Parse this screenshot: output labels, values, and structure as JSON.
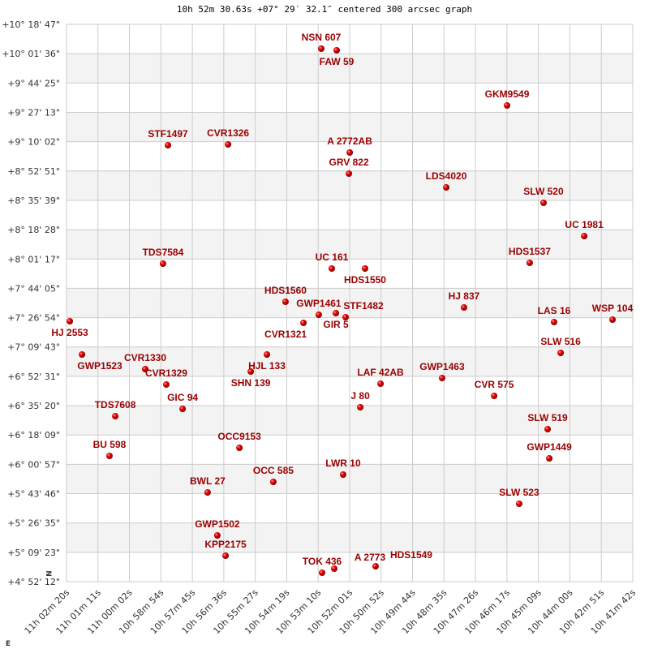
{
  "chart_data": {
    "type": "scatter",
    "title": "10h 52m 30.63s +07° 29′ 32.1″ centered 300 arcsec graph",
    "x_axis": {
      "quantity": "right ascension (hours)",
      "label": "E",
      "range_hours": [
        11.03889,
        10.695
      ],
      "reversed": true,
      "ticks": [
        "11h 02m 20s",
        "11h 01m 11s",
        "11h 00m 02s",
        "10h 58m 54s",
        "10h 57m 45s",
        "10h 56m 36s",
        "10h 55m 27s",
        "10h 54m 19s",
        "10h 53m 10s",
        "10h 52m 01s",
        "10h 50m 52s",
        "10h 49m 44s",
        "10h 48m 35s",
        "10h 47m 26s",
        "10h 46m 17s",
        "10h 45m 09s",
        "10h 44m 00s",
        "10h 42m 51s",
        "10h 41m 42s"
      ]
    },
    "y_axis": {
      "quantity": "declination (degrees)",
      "label": "N",
      "range_deg": [
        4.87,
        10.31306
      ],
      "ticks": [
        "+10° 18' 47\"",
        "+10° 01' 36\"",
        "+9° 44' 25\"",
        "+9° 27' 13\"",
        "+9° 10' 02\"",
        "+8° 52' 51\"",
        "+8° 35' 39\"",
        "+8° 18' 28\"",
        "+8° 01' 17\"",
        "+7° 44' 05\"",
        "+7° 26' 54\"",
        "+7° 09' 43\"",
        "+6° 52' 31\"",
        "+6° 35' 20\"",
        "+6° 18' 09\"",
        "+6° 00' 57\"",
        "+5° 43' 46\"",
        "+5° 26' 35\"",
        "+5° 09' 23\"",
        "+4° 52' 12\""
      ]
    },
    "grid": true,
    "banded_rows": true,
    "colors": {
      "point": "#dd0000",
      "label": "#990000",
      "grid": "#cccccc",
      "band": "#f3f3f3"
    },
    "points": [
      {
        "name": "NSN 607",
        "ra": 10.88418,
        "dec": 10.0754
      },
      {
        "name": "FAW 59",
        "ra": 10.87482,
        "dec": 10.0595
      },
      {
        "name": "GKM9549",
        "ra": 10.77135,
        "dec": 9.5208
      },
      {
        "name": "STF1497",
        "ra": 10.9773,
        "dec": 9.1325
      },
      {
        "name": "CVR1326",
        "ra": 10.9408,
        "dec": 9.1405
      },
      {
        "name": "A  2772AB",
        "ra": 10.8669,
        "dec": 9.0612
      },
      {
        "name": "GRV 822",
        "ra": 10.8674,
        "dec": 8.8552
      },
      {
        "name": "LDS4020",
        "ra": 10.8083,
        "dec": 8.7205
      },
      {
        "name": "SLW 520",
        "ra": 10.7492,
        "dec": 8.57
      },
      {
        "name": "UC 1981",
        "ra": 10.7245,
        "dec": 8.2452
      },
      {
        "name": "TDS7584",
        "ra": 10.9803,
        "dec": 7.9758
      },
      {
        "name": "UC  161",
        "ra": 10.8778,
        "dec": 7.9282
      },
      {
        "name": "HDS1550",
        "ra": 10.8576,
        "dec": 7.9282
      },
      {
        "name": "HDS1537",
        "ra": 10.7576,
        "dec": 7.9837
      },
      {
        "name": "HDS1560",
        "ra": 10.9059,
        "dec": 7.6034
      },
      {
        "name": "HJ  837",
        "ra": 10.7975,
        "dec": 7.5479
      },
      {
        "name": "GWP1461",
        "ra": 10.8857,
        "dec": 7.4766
      },
      {
        "name": "GIR  5",
        "ra": 10.8753,
        "dec": 7.4925
      },
      {
        "name": "STF1482",
        "ra": 10.8694,
        "dec": 7.4529
      },
      {
        "name": "CVR1321",
        "ra": 10.895,
        "dec": 7.3974
      },
      {
        "name": "HJ 2553",
        "ra": 11.0369,
        "dec": 7.4132
      },
      {
        "name": "LAS  16",
        "ra": 10.7428,
        "dec": 7.4053
      },
      {
        "name": "WSP 104",
        "ra": 10.7073,
        "dec": 7.4291
      },
      {
        "name": "GWP1523",
        "ra": 11.0295,
        "dec": 7.0884
      },
      {
        "name": "HJL 133",
        "ra": 10.9172,
        "dec": 7.0884
      },
      {
        "name": "SLW 516",
        "ra": 10.7388,
        "dec": 7.1042
      },
      {
        "name": "SHN 139",
        "ra": 10.927,
        "dec": 6.922
      },
      {
        "name": "CVR1330",
        "ra": 10.9911,
        "dec": 6.9458
      },
      {
        "name": "CVR1329",
        "ra": 10.9783,
        "dec": 6.7952
      },
      {
        "name": "LAF  42AB",
        "ra": 10.8482,
        "dec": 6.8032
      },
      {
        "name": "GWP1463",
        "ra": 10.8108,
        "dec": 6.8586
      },
      {
        "name": "CVR 575",
        "ra": 10.7792,
        "dec": 6.6843
      },
      {
        "name": "J   80",
        "ra": 10.8605,
        "dec": 6.5734
      },
      {
        "name": "GIC  94",
        "ra": 10.9684,
        "dec": 6.5576
      },
      {
        "name": "TDS7608",
        "ra": 11.0093,
        "dec": 6.4863
      },
      {
        "name": "SLW 519",
        "ra": 10.7467,
        "dec": 6.3595
      },
      {
        "name": "OCC9153",
        "ra": 10.9339,
        "dec": 6.1773
      },
      {
        "name": "BU  598",
        "ra": 11.0128,
        "dec": 6.098
      },
      {
        "name": "GWP1449",
        "ra": 10.7457,
        "dec": 6.0743
      },
      {
        "name": "LWR  10",
        "ra": 10.8709,
        "dec": 5.9158
      },
      {
        "name": "OCC 585",
        "ra": 10.9133,
        "dec": 5.8445
      },
      {
        "name": "BWL  27",
        "ra": 10.9532,
        "dec": 5.7415
      },
      {
        "name": "SLW 523",
        "ra": 10.764,
        "dec": 5.6306
      },
      {
        "name": "GWP1502",
        "ra": 10.9473,
        "dec": 5.3216
      },
      {
        "name": "KPP2175",
        "ra": 10.9423,
        "dec": 5.1235
      },
      {
        "name": "TOK 436",
        "ra": 10.8837,
        "dec": 4.9571
      },
      {
        "name": "A  2773",
        "ra": 10.8763,
        "dec": 4.9967
      },
      {
        "name": "HDS1549",
        "ra": 10.8512,
        "dec": 5.0205
      }
    ]
  }
}
